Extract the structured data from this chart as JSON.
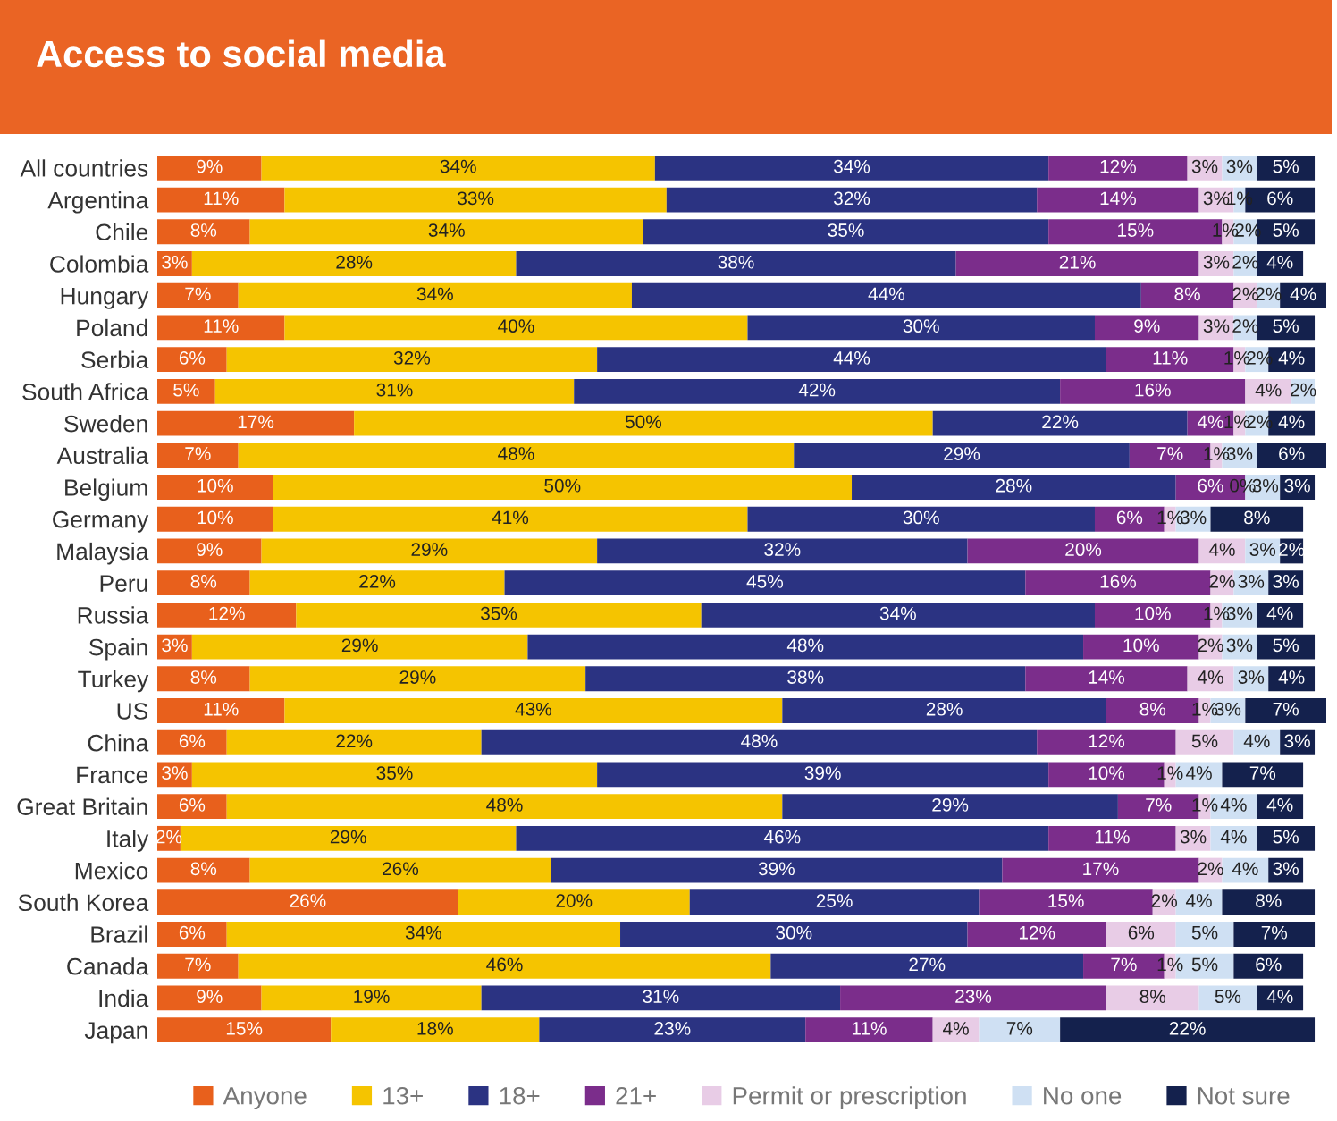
{
  "chart_data": {
    "type": "bar",
    "orientation": "horizontal",
    "stacked": true,
    "title": "Access to social media",
    "legend": "bottom",
    "grid": false,
    "tick_labels": "y",
    "xlim": [
      0,
      101
    ],
    "categories": [
      "All countries",
      "Argentina",
      "Chile",
      "Colombia",
      "Hungary",
      "Poland",
      "Serbia",
      "South Africa",
      "Sweden",
      "Australia",
      "Belgium",
      "Germany",
      "Malaysia",
      "Peru",
      "Russia",
      "Spain",
      "Turkey",
      "US",
      "China",
      "France",
      "Great Britain",
      "Italy",
      "Mexico",
      "South Korea",
      "Brazil",
      "Canada",
      "India",
      "Japan"
    ],
    "series": [
      {
        "name": "Anyone",
        "color": "#e8601c",
        "values": [
          9,
          11,
          8,
          3,
          7,
          11,
          6,
          5,
          17,
          7,
          10,
          10,
          9,
          8,
          12,
          3,
          8,
          11,
          6,
          3,
          6,
          2,
          8,
          26,
          6,
          7,
          9,
          15
        ],
        "value_labels": [
          "9%",
          "11%",
          "8%",
          "3%",
          "7%",
          "11%",
          "6%",
          "5%",
          "17%",
          "7%",
          "10%",
          "10%",
          "9%",
          "8%",
          "12%",
          "3%",
          "8%",
          "11%",
          "6%",
          "3%",
          "6%",
          "2%",
          "8%",
          "26%",
          "6%",
          "7%",
          "9%",
          "15%"
        ]
      },
      {
        "name": "13+",
        "color": "#f5c400",
        "values": [
          34,
          33,
          34,
          28,
          34,
          40,
          32,
          31,
          50,
          48,
          50,
          41,
          29,
          22,
          35,
          29,
          29,
          43,
          22,
          35,
          48,
          29,
          26,
          20,
          34,
          46,
          19,
          18
        ],
        "value_labels": [
          "34%",
          "33%",
          "34%",
          "28%",
          "34%",
          "40%",
          "32%",
          "31%",
          "50%",
          "48%",
          "50%",
          "41%",
          "29%",
          "22%",
          "35%",
          "29%",
          "29%",
          "43%",
          "22%",
          "35%",
          "48%",
          "29%",
          "26%",
          "20%",
          "34%",
          "46%",
          "19%",
          "18%"
        ]
      },
      {
        "name": "18+",
        "color": "#2b3382",
        "values": [
          34,
          32,
          35,
          38,
          44,
          30,
          44,
          42,
          22,
          29,
          28,
          30,
          32,
          45,
          34,
          48,
          38,
          28,
          48,
          39,
          29,
          46,
          39,
          25,
          30,
          27,
          31,
          23
        ],
        "value_labels": [
          "34%",
          "32%",
          "35%",
          "38%",
          "44%",
          "30%",
          "44%",
          "42%",
          "22%",
          "29%",
          "28%",
          "30%",
          "32%",
          "45%",
          "34%",
          "48%",
          "38%",
          "28%",
          "48%",
          "39%",
          "29%",
          "46%",
          "39%",
          "25%",
          "30%",
          "27%",
          "31%",
          "23%"
        ]
      },
      {
        "name": "21+",
        "color": "#7b2d8b",
        "values": [
          12,
          14,
          15,
          21,
          8,
          9,
          11,
          16,
          4,
          7,
          6,
          6,
          20,
          16,
          10,
          10,
          14,
          8,
          12,
          10,
          7,
          11,
          17,
          15,
          12,
          7,
          23,
          11
        ],
        "value_labels": [
          "12%",
          "14%",
          "15%",
          "21%",
          "8%",
          "9%",
          "11%",
          "16%",
          "4%",
          "7%",
          "6%",
          "6%",
          "20%",
          "16%",
          "10%",
          "10%",
          "14%",
          "8%",
          "12%",
          "10%",
          "7%",
          "11%",
          "17%",
          "15%",
          "12%",
          "7%",
          "23%",
          "11%"
        ]
      },
      {
        "name": "Permit or prescription",
        "color": "#e8cce6",
        "values": [
          3,
          3,
          1,
          3,
          2,
          3,
          1,
          4,
          1,
          1,
          0,
          1,
          4,
          2,
          1,
          2,
          4,
          1,
          5,
          1,
          1,
          3,
          2,
          2,
          6,
          1,
          8,
          4
        ],
        "value_labels": [
          "3%",
          "3%",
          "1%",
          "3%",
          "2%",
          "3%",
          "1%",
          "4%",
          "1%",
          "1%",
          "0%",
          "1%",
          "4%",
          "2%",
          "1%",
          "2%",
          "4%",
          "1%",
          "5%",
          "1%",
          "1%",
          "3%",
          "2%",
          "2%",
          "6%",
          "1%",
          "8%",
          "4%"
        ]
      },
      {
        "name": "No one",
        "color": "#cfe0f3",
        "values": [
          3,
          1,
          2,
          2,
          2,
          2,
          2,
          2,
          2,
          3,
          3,
          3,
          3,
          3,
          3,
          3,
          3,
          3,
          4,
          4,
          4,
          4,
          4,
          4,
          5,
          5,
          5,
          7
        ],
        "value_labels": [
          "3%",
          "1%",
          "2%",
          "2%",
          "2%",
          "2%",
          "2%",
          "2%",
          "2%",
          "3%",
          "3%",
          "3%",
          "3%",
          "3%",
          "3%",
          "3%",
          "3%",
          "3%",
          "4%",
          "4%",
          "4%",
          "4%",
          "4%",
          "4%",
          "5%",
          "5%",
          "5%",
          "7%"
        ]
      },
      {
        "name": "Not sure",
        "color": "#14214d",
        "values": [
          5,
          6,
          5,
          4,
          4,
          5,
          4,
          null,
          4,
          6,
          3,
          8,
          2,
          3,
          4,
          5,
          4,
          7,
          3,
          7,
          4,
          5,
          3,
          8,
          7,
          6,
          4,
          22
        ],
        "value_labels": [
          "5%",
          "6%",
          "5%",
          "4%",
          "4%",
          "5%",
          "4%",
          null,
          "4%",
          "6%",
          "3%",
          "8%",
          "2%",
          "3%",
          "4%",
          "5%",
          "4%",
          "7%",
          "3%",
          "7%",
          "4%",
          "5%",
          "3%",
          "8%",
          "7%",
          "6%",
          "4%",
          "22%"
        ]
      }
    ]
  }
}
